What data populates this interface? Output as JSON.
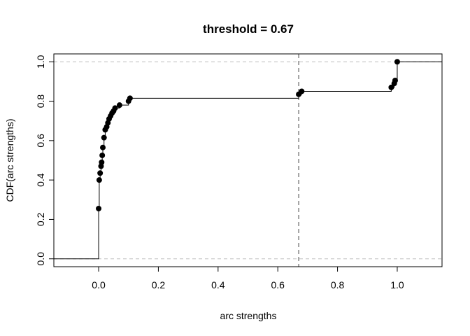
{
  "chart_data": {
    "type": "scatter",
    "title": "threshold =  0.67",
    "xlabel": "arc strengths",
    "ylabel": "CDF(arc strengths)",
    "xlim": [
      -0.15,
      1.15
    ],
    "ylim": [
      -0.04,
      1.04
    ],
    "x_ticks": [
      "0.0",
      "0.2",
      "0.4",
      "0.6",
      "0.8",
      "1.0"
    ],
    "x_tick_values": [
      0.0,
      0.2,
      0.4,
      0.6,
      0.8,
      1.0
    ],
    "y_ticks": [
      "0.0",
      "0.2",
      "0.4",
      "0.6",
      "0.8",
      "1.0"
    ],
    "y_tick_values": [
      0.0,
      0.2,
      0.4,
      0.6,
      0.8,
      1.0
    ],
    "threshold": 0.67,
    "reference_lines_y": [
      0.0,
      1.0
    ],
    "points": [
      {
        "x": 0.0,
        "y": 0.255
      },
      {
        "x": 0.002,
        "y": 0.4
      },
      {
        "x": 0.005,
        "y": 0.435
      },
      {
        "x": 0.008,
        "y": 0.47
      },
      {
        "x": 0.01,
        "y": 0.49
      },
      {
        "x": 0.012,
        "y": 0.525
      },
      {
        "x": 0.014,
        "y": 0.565
      },
      {
        "x": 0.018,
        "y": 0.615
      },
      {
        "x": 0.022,
        "y": 0.655
      },
      {
        "x": 0.027,
        "y": 0.67
      },
      {
        "x": 0.031,
        "y": 0.69
      },
      {
        "x": 0.035,
        "y": 0.71
      },
      {
        "x": 0.04,
        "y": 0.725
      },
      {
        "x": 0.045,
        "y": 0.74
      },
      {
        "x": 0.05,
        "y": 0.75
      },
      {
        "x": 0.055,
        "y": 0.765
      },
      {
        "x": 0.07,
        "y": 0.78
      },
      {
        "x": 0.1,
        "y": 0.8
      },
      {
        "x": 0.105,
        "y": 0.815
      },
      {
        "x": 0.67,
        "y": 0.835
      },
      {
        "x": 0.68,
        "y": 0.85
      },
      {
        "x": 0.98,
        "y": 0.87
      },
      {
        "x": 0.99,
        "y": 0.89
      },
      {
        "x": 0.993,
        "y": 0.905
      },
      {
        "x": 1.0,
        "y": 1.0
      }
    ]
  }
}
